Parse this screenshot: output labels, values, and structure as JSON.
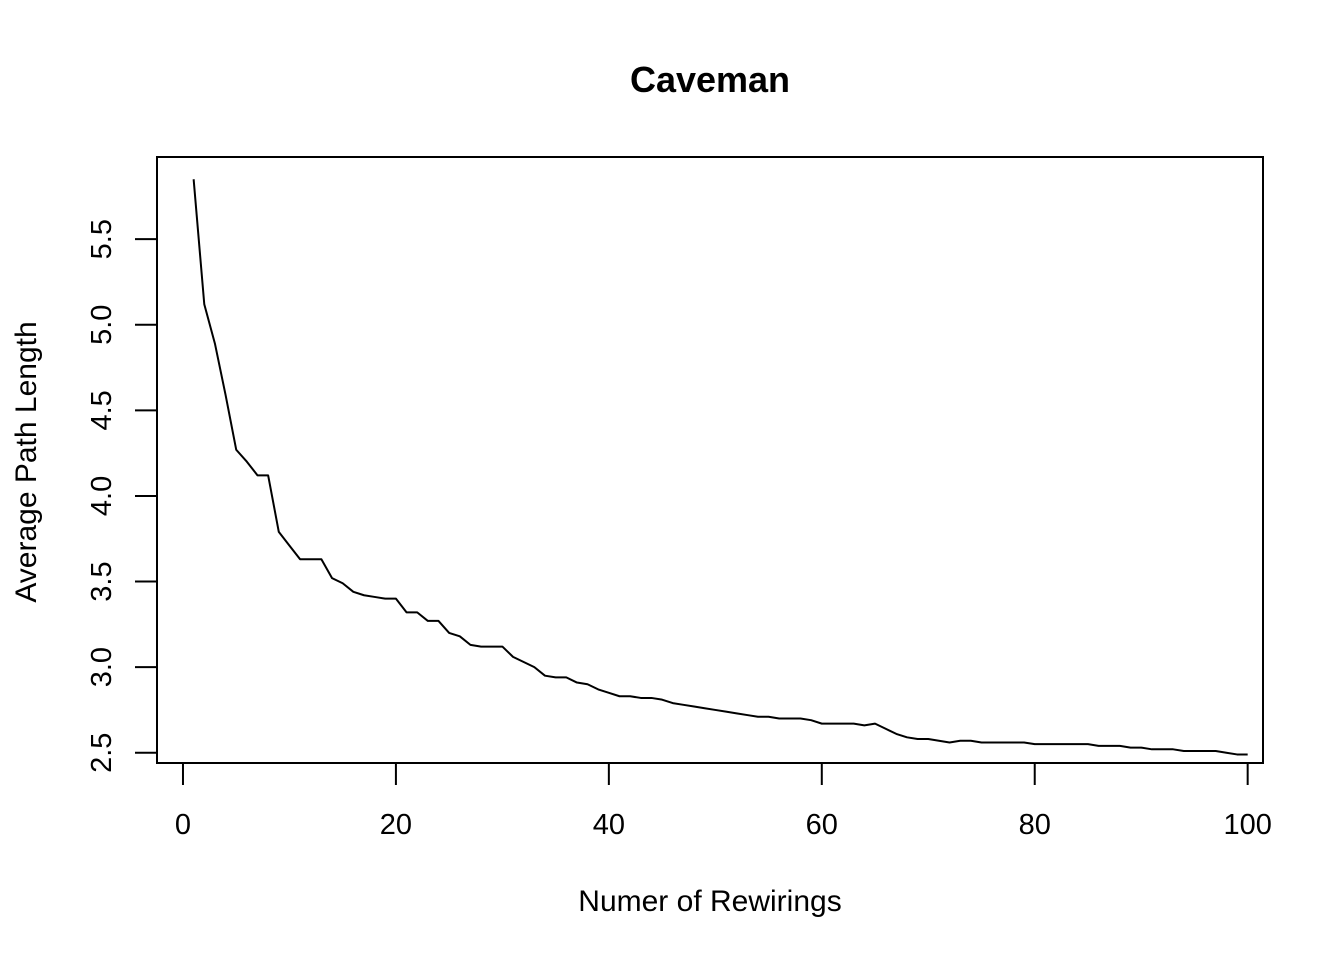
{
  "chart_data": {
    "type": "line",
    "title": "Caveman",
    "xlabel": "Numer of Rewirings",
    "ylabel": "Average Path Length",
    "xlim": [
      -2.44,
      101.44
    ],
    "ylim": [
      2.44,
      5.98
    ],
    "xticks": [
      0,
      20,
      40,
      60,
      80,
      100
    ],
    "xtick_labels": [
      "0",
      "20",
      "40",
      "60",
      "80",
      "100"
    ],
    "yticks": [
      2.5,
      3.0,
      3.5,
      4.0,
      4.5,
      5.0,
      5.5
    ],
    "ytick_labels": [
      "2.5",
      "3.0",
      "3.5",
      "4.0",
      "4.5",
      "5.0",
      "5.5"
    ],
    "grid": false,
    "legend": "none",
    "series": [
      {
        "color": "#000000",
        "x": [
          1,
          2,
          3,
          4,
          5,
          6,
          7,
          8,
          9,
          10,
          11,
          12,
          13,
          14,
          15,
          16,
          17,
          18,
          19,
          20,
          21,
          22,
          23,
          24,
          25,
          26,
          27,
          28,
          29,
          30,
          31,
          32,
          33,
          34,
          35,
          36,
          37,
          38,
          39,
          40,
          41,
          42,
          43,
          44,
          45,
          46,
          47,
          48,
          49,
          50,
          51,
          52,
          53,
          54,
          55,
          56,
          57,
          58,
          59,
          60,
          61,
          62,
          63,
          64,
          65,
          66,
          67,
          68,
          69,
          70,
          71,
          72,
          73,
          74,
          75,
          76,
          77,
          78,
          79,
          80,
          81,
          82,
          83,
          84,
          85,
          86,
          87,
          88,
          89,
          90,
          91,
          92,
          93,
          94,
          95,
          96,
          97,
          98,
          99,
          100
        ],
        "y": [
          5.85,
          5.12,
          4.89,
          4.59,
          4.27,
          4.2,
          4.12,
          4.12,
          3.79,
          3.71,
          3.63,
          3.63,
          3.63,
          3.52,
          3.49,
          3.44,
          3.42,
          3.41,
          3.4,
          3.4,
          3.32,
          3.32,
          3.27,
          3.27,
          3.2,
          3.18,
          3.13,
          3.12,
          3.12,
          3.12,
          3.06,
          3.03,
          3.0,
          2.95,
          2.94,
          2.94,
          2.91,
          2.9,
          2.87,
          2.85,
          2.83,
          2.83,
          2.82,
          2.82,
          2.81,
          2.79,
          2.78,
          2.77,
          2.76,
          2.75,
          2.74,
          2.73,
          2.72,
          2.71,
          2.71,
          2.7,
          2.7,
          2.7,
          2.69,
          2.67,
          2.67,
          2.67,
          2.67,
          2.66,
          2.67,
          2.64,
          2.61,
          2.59,
          2.58,
          2.58,
          2.57,
          2.56,
          2.57,
          2.57,
          2.56,
          2.56,
          2.56,
          2.56,
          2.56,
          2.55,
          2.55,
          2.55,
          2.55,
          2.55,
          2.55,
          2.54,
          2.54,
          2.54,
          2.53,
          2.53,
          2.52,
          2.52,
          2.52,
          2.51,
          2.51,
          2.51,
          2.51,
          2.5,
          2.49,
          2.49
        ]
      }
    ]
  }
}
